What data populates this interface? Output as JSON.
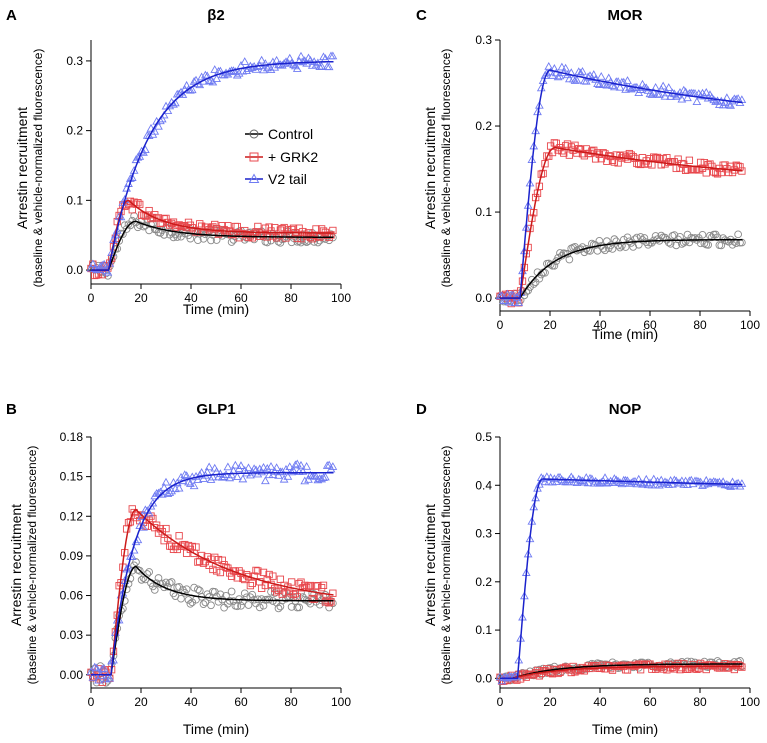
{
  "chart_data": [
    {
      "type": "scatter",
      "panel_letter": "A",
      "title": "β2",
      "xlabel": "Time (min)",
      "ylabel": "Arrestin recruitment",
      "ylabel_sub": "(baseline & vehicle-normalized fluorescence)",
      "xlim": [
        0,
        100
      ],
      "ylim": [
        -0.02,
        0.33
      ],
      "xticks": [
        0,
        20,
        40,
        60,
        80,
        100
      ],
      "xtick_labels": [
        "0",
        "20",
        "40",
        "60",
        "80",
        "100"
      ],
      "yticks": [
        0,
        0.1,
        0.2,
        0.3
      ],
      "ytick_labels": [
        "0.0",
        "0.1",
        "0.2",
        "0.3"
      ],
      "legend": {
        "placement": "center-right",
        "entries": [
          {
            "label": "Control",
            "series": "Control"
          },
          {
            "label": "+ GRK2",
            "series": "+ GRK2"
          },
          {
            "label": "V2 tail",
            "series": "V2 tail"
          }
        ]
      },
      "series": [
        {
          "name": "Control",
          "marker": "circle",
          "color": "#8a8a8a",
          "fit_color": "#000000",
          "onset": 7,
          "model": "transient",
          "peak": 0.07,
          "peak_time": 18,
          "plateau": 0.047,
          "decay_tau": 15,
          "noise": 0.004
        },
        {
          "name": "+ GRK2",
          "marker": "square",
          "color": "#e8474c",
          "fit_color": "#cc1a1a",
          "onset": 7,
          "model": "transient",
          "peak": 0.1,
          "peak_time": 15,
          "plateau": 0.053,
          "decay_tau": 14,
          "noise": 0.004
        },
        {
          "name": "V2 tail",
          "marker": "triangle",
          "color": "#6f7bf2",
          "fit_color": "#1a22cc",
          "onset": 7,
          "model": "rise",
          "plateau": 0.3,
          "rise_tau": 16,
          "noise": 0.004
        }
      ]
    },
    {
      "type": "scatter",
      "panel_letter": "B",
      "title": "GLP1",
      "xlabel": "Time (min)",
      "ylabel": "Arrestin recruitment",
      "ylabel_sub": "(baseline & vehicle-normalized fluorescence)",
      "xlim": [
        0,
        100
      ],
      "ylim": [
        -0.01,
        0.18
      ],
      "xticks": [
        0,
        20,
        40,
        60,
        80,
        100
      ],
      "xtick_labels": [
        "0",
        "20",
        "40",
        "60",
        "80",
        "100"
      ],
      "yticks": [
        0,
        0.03,
        0.06,
        0.09,
        0.12,
        0.15,
        0.18
      ],
      "ytick_labels": [
        "0.00",
        "0.03",
        "0.06",
        "0.09",
        "0.12",
        "0.15",
        "0.18"
      ],
      "series": [
        {
          "name": "Control",
          "marker": "circle",
          "color": "#8a8a8a",
          "fit_color": "#000000",
          "onset": 8,
          "model": "transient",
          "peak": 0.082,
          "peak_time": 18,
          "plateau": 0.056,
          "decay_tau": 12,
          "noise": 0.003
        },
        {
          "name": "+ GRK2",
          "marker": "square",
          "color": "#e8474c",
          "fit_color": "#cc1a1a",
          "onset": 8,
          "model": "transient",
          "peak": 0.125,
          "peak_time": 18,
          "plateau": 0.05,
          "decay_tau": 40,
          "noise": 0.003
        },
        {
          "name": "V2 tail",
          "marker": "triangle",
          "color": "#6f7bf2",
          "fit_color": "#1a22cc",
          "onset": 8,
          "model": "rise",
          "plateau": 0.153,
          "rise_tau": 9,
          "noise": 0.003
        }
      ]
    },
    {
      "type": "scatter",
      "panel_letter": "C",
      "title": "MOR",
      "xlabel": "Time (min)",
      "ylabel": "Arrestin recruitment",
      "ylabel_sub": "(baseline & vehicle-normalized fluorescence)",
      "xlim": [
        0,
        100
      ],
      "ylim": [
        -0.015,
        0.3
      ],
      "xticks": [
        0,
        20,
        40,
        60,
        80,
        100
      ],
      "xtick_labels": [
        "0",
        "20",
        "40",
        "60",
        "80",
        "100"
      ],
      "yticks": [
        0,
        0.1,
        0.2,
        0.3
      ],
      "ytick_labels": [
        "0.0",
        "0.1",
        "0.2",
        "0.3"
      ],
      "series": [
        {
          "name": "Control",
          "marker": "circle",
          "color": "#8a8a8a",
          "fit_color": "#000000",
          "onset": 8,
          "model": "rise",
          "plateau": 0.068,
          "rise_tau": 14,
          "noise": 0.003
        },
        {
          "name": "+ GRK2",
          "marker": "square",
          "color": "#e8474c",
          "fit_color": "#cc1a1a",
          "onset": 8,
          "model": "transient",
          "peak": 0.175,
          "peak_time": 22,
          "plateau": 0.12,
          "decay_tau": 110,
          "noise": 0.003
        },
        {
          "name": "V2 tail",
          "marker": "triangle",
          "color": "#6f7bf2",
          "fit_color": "#1a22cc",
          "onset": 8,
          "model": "transient",
          "peak": 0.265,
          "peak_time": 20,
          "plateau": 0.19,
          "decay_tau": 110,
          "noise": 0.003
        }
      ]
    },
    {
      "type": "scatter",
      "panel_letter": "D",
      "title": "NOP",
      "xlabel": "Time (min)",
      "ylabel": "Arrestin recruitment",
      "ylabel_sub": "(baseline & vehicle-normalized fluorescence)",
      "xlim": [
        0,
        100
      ],
      "ylim": [
        -0.02,
        0.5
      ],
      "xticks": [
        0,
        20,
        40,
        60,
        80,
        100
      ],
      "xtick_labels": [
        "0",
        "20",
        "40",
        "60",
        "80",
        "100"
      ],
      "yticks": [
        0,
        0.1,
        0.2,
        0.3,
        0.4,
        0.5
      ],
      "ytick_labels": [
        "0.0",
        "0.1",
        "0.2",
        "0.3",
        "0.4",
        "0.5"
      ],
      "series": [
        {
          "name": "Control",
          "marker": "circle",
          "color": "#8a8a8a",
          "fit_color": "#000000",
          "onset": 5,
          "model": "rise",
          "plateau": 0.03,
          "rise_tau": 18,
          "noise": 0.003
        },
        {
          "name": "+ GRK2",
          "marker": "square",
          "color": "#e8474c",
          "fit_color": "#cc1a1a",
          "onset": 5,
          "model": "rise",
          "plateau": 0.025,
          "rise_tau": 18,
          "noise": 0.003
        },
        {
          "name": "V2 tail",
          "marker": "triangle",
          "color": "#6f7bf2",
          "fit_color": "#1a22cc",
          "onset": 7,
          "model": "transient",
          "peak": 0.413,
          "peak_time": 17,
          "plateau": 0.35,
          "decay_tau": 400,
          "noise": 0.003
        }
      ]
    }
  ]
}
